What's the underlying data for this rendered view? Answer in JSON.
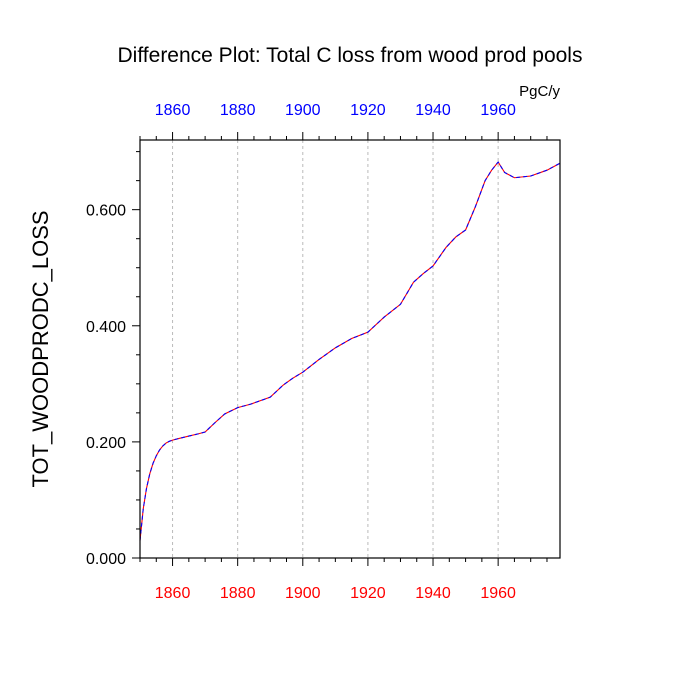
{
  "chart_data": {
    "type": "line",
    "title": "Difference Plot: Total C loss from wood prod pools",
    "ylabel": "TOT_WOODPRODC_LOSS",
    "units": "PgC/y",
    "xlim": [
      1850,
      1979
    ],
    "ylim": [
      0,
      0.72
    ],
    "yticks": [
      0,
      0.2,
      0.4,
      0.6
    ],
    "ytick_labels": [
      "0.000",
      "0.200",
      "0.400",
      "0.600"
    ],
    "xticks": [
      1860,
      1880,
      1900,
      1920,
      1940,
      1960
    ],
    "xtick_labels_bottom": [
      "1860",
      "1880",
      "1900",
      "1920",
      "1940",
      "1960"
    ],
    "xtick_labels_top": [
      "1860",
      "1880",
      "1900",
      "1920",
      "1940",
      "1960"
    ],
    "grid": "vertical dashed at major x ticks",
    "colors": {
      "bottom_axis_labels": "#ff0000",
      "top_axis_labels": "#0000ff",
      "series_1": "#ff0000",
      "series_2": "#0000ff"
    },
    "series": [
      {
        "x": [
          1850,
          1851,
          1852,
          1853,
          1854,
          1855,
          1856,
          1857,
          1858,
          1859,
          1860,
          1862,
          1865,
          1868,
          1870,
          1873,
          1876,
          1880,
          1884,
          1890,
          1894,
          1897,
          1900,
          1905,
          1910,
          1915,
          1920,
          1925,
          1930,
          1934,
          1937,
          1940,
          1944,
          1947,
          1950,
          1953,
          1956,
          1958,
          1960,
          1962,
          1965,
          1970,
          1975,
          1979
        ],
        "values": [
          0.03,
          0.085,
          0.12,
          0.145,
          0.163,
          0.176,
          0.186,
          0.193,
          0.198,
          0.201,
          0.203,
          0.206,
          0.21,
          0.214,
          0.217,
          0.233,
          0.248,
          0.259,
          0.265,
          0.277,
          0.298,
          0.31,
          0.32,
          0.342,
          0.362,
          0.378,
          0.389,
          0.415,
          0.437,
          0.475,
          0.49,
          0.503,
          0.535,
          0.553,
          0.565,
          0.605,
          0.65,
          0.668,
          0.682,
          0.664,
          0.655,
          0.658,
          0.668,
          0.68
        ]
      },
      {
        "x": [
          1850,
          1851,
          1852,
          1853,
          1854,
          1855,
          1856,
          1857,
          1858,
          1859,
          1860,
          1862,
          1865,
          1868,
          1870,
          1873,
          1876,
          1880,
          1884,
          1890,
          1894,
          1897,
          1900,
          1905,
          1910,
          1915,
          1920,
          1925,
          1930,
          1934,
          1937,
          1940,
          1944,
          1947,
          1950,
          1953,
          1956,
          1958,
          1960,
          1962,
          1965,
          1970,
          1975,
          1979
        ],
        "values": [
          0.03,
          0.085,
          0.12,
          0.145,
          0.163,
          0.176,
          0.186,
          0.193,
          0.198,
          0.201,
          0.203,
          0.206,
          0.21,
          0.214,
          0.217,
          0.233,
          0.248,
          0.259,
          0.265,
          0.277,
          0.298,
          0.31,
          0.32,
          0.342,
          0.362,
          0.378,
          0.389,
          0.415,
          0.437,
          0.475,
          0.49,
          0.503,
          0.535,
          0.553,
          0.565,
          0.605,
          0.65,
          0.668,
          0.682,
          0.664,
          0.655,
          0.658,
          0.668,
          0.68
        ]
      }
    ]
  }
}
